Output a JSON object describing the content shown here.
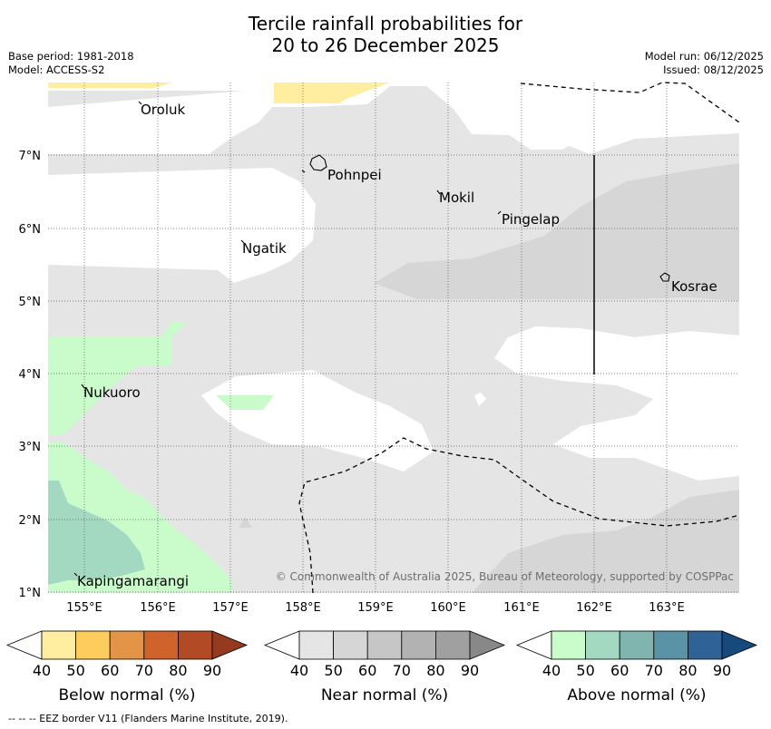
{
  "title_line1": "Tercile rainfall probabilities for",
  "title_line2": "20 to 26 December 2025",
  "base_period": "Base period: 1981-2018",
  "model": "Model: ACCESS-S2",
  "model_run": "Model run: 06/12/2025",
  "issued": "Issued: 08/12/2025",
  "copyright": "© Commonwealth of Australia 2025, Bureau of Meteorology, supported by COSPPac",
  "footer": "--  --  -- EEZ border V11 (Flanders Marine Institute, 2019).",
  "axes": {
    "lon_labels": [
      "155°E",
      "156°E",
      "157°E",
      "158°E",
      "159°E",
      "160°E",
      "161°E",
      "162°E",
      "163°E"
    ],
    "lat_labels": [
      "7°N",
      "6°N",
      "5°N",
      "4°N",
      "3°N",
      "2°N",
      "1°N"
    ]
  },
  "places": [
    {
      "name": "Oroluk"
    },
    {
      "name": "Pohnpei"
    },
    {
      "name": "Mokil"
    },
    {
      "name": "Pingelap"
    },
    {
      "name": "Ngatik"
    },
    {
      "name": "Kosrae"
    },
    {
      "name": "Nukuoro"
    },
    {
      "name": "Kapingamarangi"
    }
  ],
  "colorbars": [
    {
      "label": "Below normal (%)",
      "ticks": [
        "40",
        "50",
        "60",
        "70",
        "80",
        "90"
      ],
      "colors": [
        "#ffeda0",
        "#fecc5c",
        "#e49446",
        "#d0622c",
        "#b24a25",
        "#953a1f"
      ]
    },
    {
      "label": "Near normal (%)",
      "ticks": [
        "40",
        "50",
        "60",
        "70",
        "80",
        "90"
      ],
      "colors": [
        "#e5e5e5",
        "#d6d6d6",
        "#c6c6c6",
        "#b2b2b2",
        "#a0a0a0",
        "#888888"
      ]
    },
    {
      "label": "Above normal (%)",
      "ticks": [
        "40",
        "50",
        "60",
        "70",
        "80",
        "90"
      ],
      "colors": [
        "#c9fbcb",
        "#a2d9c0",
        "#80b5af",
        "#5a92a6",
        "#2f6396",
        "#174a7c"
      ]
    }
  ],
  "colors": {
    "near_light": "#e5e5e5",
    "near_mid": "#d6d6d6",
    "above_light": "#c9fbcb",
    "above_mid": "#a2d9c0",
    "below_light": "#ffeda0"
  }
}
